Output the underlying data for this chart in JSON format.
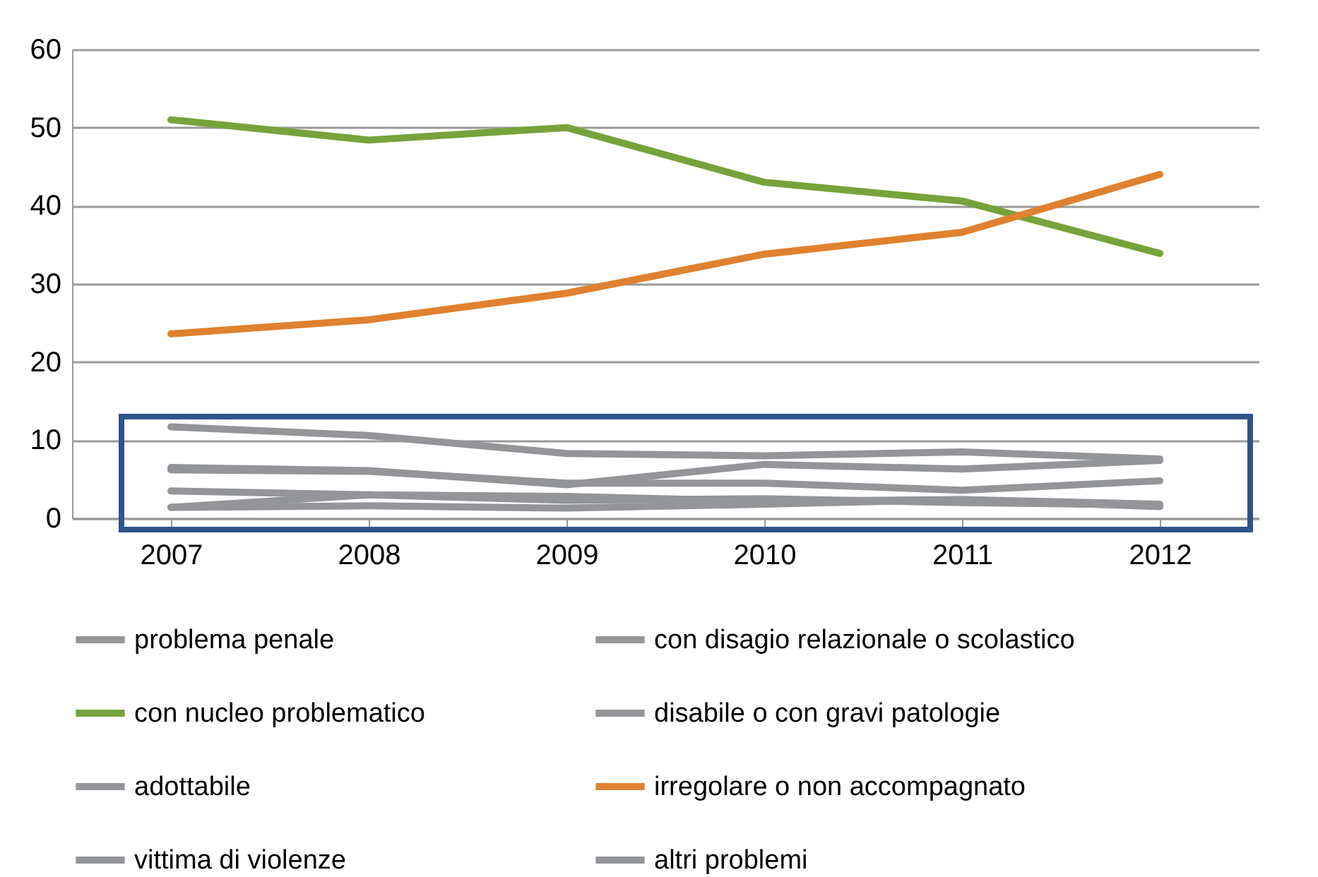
{
  "chart_data": {
    "type": "line",
    "categories": [
      "2007",
      "2008",
      "2009",
      "2010",
      "2011",
      "2012"
    ],
    "series": [
      {
        "name": "problema penale",
        "color": "#939598",
        "values": [
          11.7,
          10.6,
          8.3,
          8.0,
          8.5,
          7.6
        ]
      },
      {
        "name": "con disagio relazionale o scolastico",
        "color": "#939598",
        "values": [
          6.5,
          6.1,
          4.3,
          6.9,
          6.3,
          7.4
        ]
      },
      {
        "name": "con nucleo problematico",
        "color": "#77a33a",
        "values": [
          51,
          48.4,
          50,
          43,
          40.6,
          33.9
        ]
      },
      {
        "name": "disabile o con gravi patologie",
        "color": "#939598",
        "values": [
          6.2,
          6.0,
          4.5,
          4.5,
          3.6,
          4.8
        ]
      },
      {
        "name": "adottabile",
        "color": "#939598",
        "values": [
          3.5,
          3.0,
          2.8,
          2.2,
          2.4,
          1.5
        ]
      },
      {
        "name": "irregolare o non accompagnato",
        "color": "#e0812f",
        "values": [
          23.6,
          25.4,
          28.8,
          33.8,
          36.6,
          44
        ]
      },
      {
        "name": "vittima di violenze",
        "color": "#939598",
        "values": [
          1.4,
          1.6,
          1.3,
          1.8,
          2.4,
          1.8
        ]
      },
      {
        "name": "altri problemi",
        "color": "#939598",
        "values": [
          1.4,
          3.0,
          2.3,
          2.5,
          2.0,
          1.7
        ]
      }
    ],
    "ylim": [
      0,
      60
    ],
    "yticks": [
      0,
      10,
      20,
      30,
      40,
      50,
      60
    ],
    "grid": "y",
    "legend": "bottom",
    "marker": "none",
    "line_style": "solid"
  }
}
